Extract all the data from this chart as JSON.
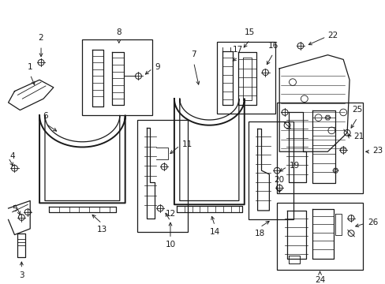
{
  "bg_color": "#ffffff",
  "line_color": "#1a1a1a",
  "figsize": [
    4.89,
    3.6
  ],
  "dpi": 100,
  "label_fontsize": 7.5,
  "lw": 0.9
}
